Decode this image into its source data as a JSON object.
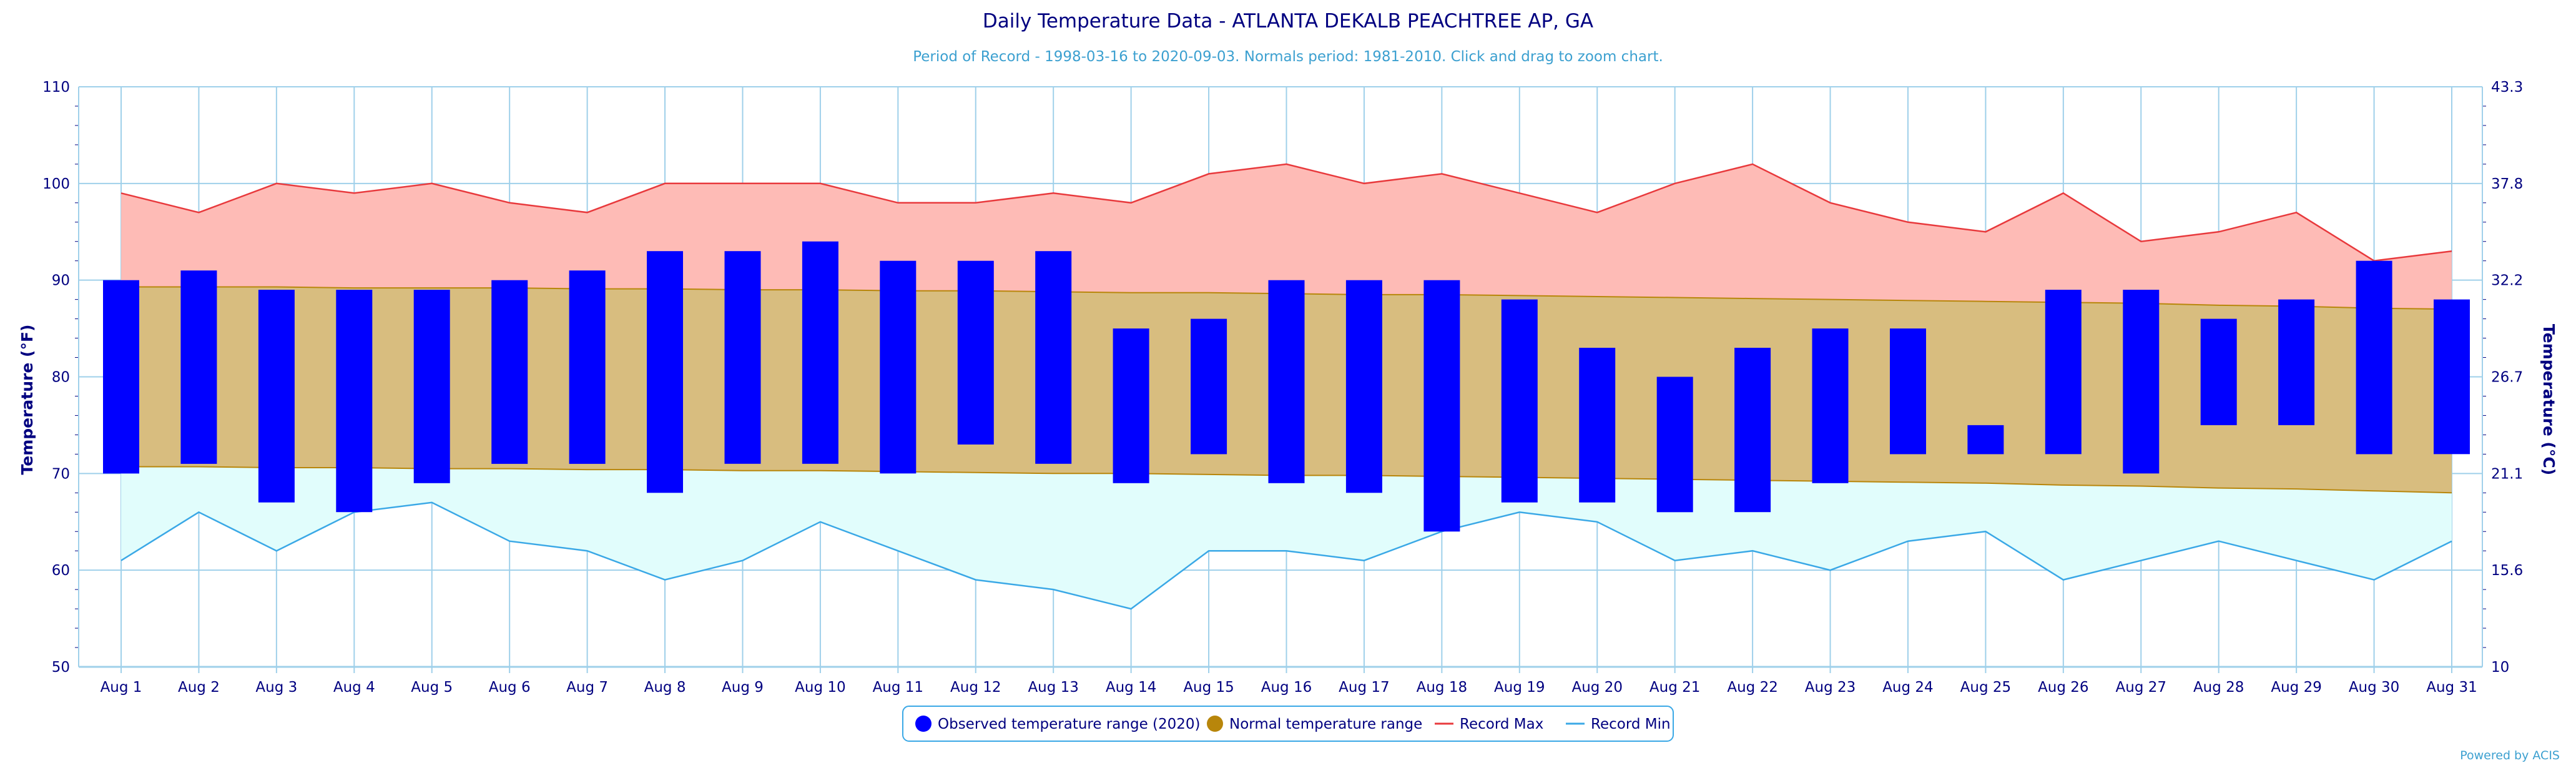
{
  "colors": {
    "observed": "#0000ff",
    "normal": "#b8860b",
    "normal_fill": "#d8bd7f",
    "record_max": "#e8393c",
    "record_max_fill": "#febbb6",
    "record_min": "#3aa8e6",
    "record_min_fill": "#e1fdfc",
    "grid": "#9fd0ea",
    "text": "#000080",
    "subtitle": "#3ca0d0"
  },
  "credit": "Powered by ACIS",
  "chart_data": {
    "type": "bar",
    "title": "Daily Temperature Data - ATLANTA DEKALB PEACHTREE AP, GA",
    "subtitle": "Period of Record - 1998-03-16 to 2020-09-03. Normals period: 1981-2010. Click and drag to zoom chart.",
    "ylabel": "Temperature (°F)",
    "y2label": "Temperature (°C)",
    "ylim": [
      50,
      110
    ],
    "yticks": [
      "50",
      "60",
      "70",
      "80",
      "90",
      "100",
      "110"
    ],
    "y2ticks": [
      "10",
      "15.6",
      "21.1",
      "26.7",
      "32.2",
      "37.8",
      "43.3"
    ],
    "grid": true,
    "legend_position": "bottom-center",
    "categories": [
      "Aug 1",
      "Aug 2",
      "Aug 3",
      "Aug 4",
      "Aug 5",
      "Aug 6",
      "Aug 7",
      "Aug 8",
      "Aug 9",
      "Aug 10",
      "Aug 11",
      "Aug 12",
      "Aug 13",
      "Aug 14",
      "Aug 15",
      "Aug 16",
      "Aug 17",
      "Aug 18",
      "Aug 19",
      "Aug 20",
      "Aug 21",
      "Aug 22",
      "Aug 23",
      "Aug 24",
      "Aug 25",
      "Aug 26",
      "Aug 27",
      "Aug 28",
      "Aug 29",
      "Aug 30",
      "Aug 31"
    ],
    "legend": [
      "Observed temperature range (2020)",
      "Normal temperature range",
      "Record Max",
      "Record Min"
    ],
    "observed_low": [
      70,
      71,
      67,
      66,
      69,
      71,
      71,
      68,
      71,
      71,
      70,
      73,
      71,
      69,
      72,
      69,
      68,
      64,
      67,
      67,
      66,
      66,
      69,
      72,
      72,
      72,
      70,
      75,
      75,
      72,
      72
    ],
    "observed_high": [
      90,
      91,
      89,
      89,
      89,
      90,
      91,
      93,
      93,
      94,
      92,
      92,
      93,
      85,
      86,
      90,
      90,
      90,
      88,
      83,
      80,
      83,
      85,
      85,
      75,
      89,
      89,
      86,
      88,
      92,
      88
    ],
    "normal_low": [
      70.7,
      70.7,
      70.6,
      70.6,
      70.5,
      70.5,
      70.4,
      70.4,
      70.3,
      70.3,
      70.2,
      70.1,
      70.0,
      70.0,
      69.9,
      69.8,
      69.8,
      69.7,
      69.6,
      69.5,
      69.4,
      69.3,
      69.2,
      69.1,
      69.0,
      68.8,
      68.7,
      68.5,
      68.4,
      68.2,
      68.0
    ],
    "normal_high": [
      89.3,
      89.3,
      89.3,
      89.2,
      89.2,
      89.2,
      89.1,
      89.1,
      89.0,
      89.0,
      88.9,
      88.9,
      88.8,
      88.7,
      88.7,
      88.6,
      88.5,
      88.5,
      88.4,
      88.3,
      88.2,
      88.1,
      88.0,
      87.9,
      87.8,
      87.7,
      87.6,
      87.4,
      87.3,
      87.1,
      87.0
    ],
    "record_max": [
      99,
      97,
      100,
      99,
      100,
      98,
      97,
      100,
      100,
      100,
      98,
      98,
      99,
      98,
      101,
      102,
      100,
      101,
      99,
      97,
      100,
      102,
      98,
      96,
      95,
      99,
      94,
      95,
      97,
      92,
      93
    ],
    "record_min": [
      61,
      66,
      62,
      66,
      67,
      63,
      62,
      59,
      61,
      65,
      62,
      59,
      58,
      56,
      62,
      62,
      61,
      64,
      66,
      65,
      61,
      62,
      60,
      63,
      64,
      59,
      61,
      63,
      61,
      59,
      63
    ]
  }
}
